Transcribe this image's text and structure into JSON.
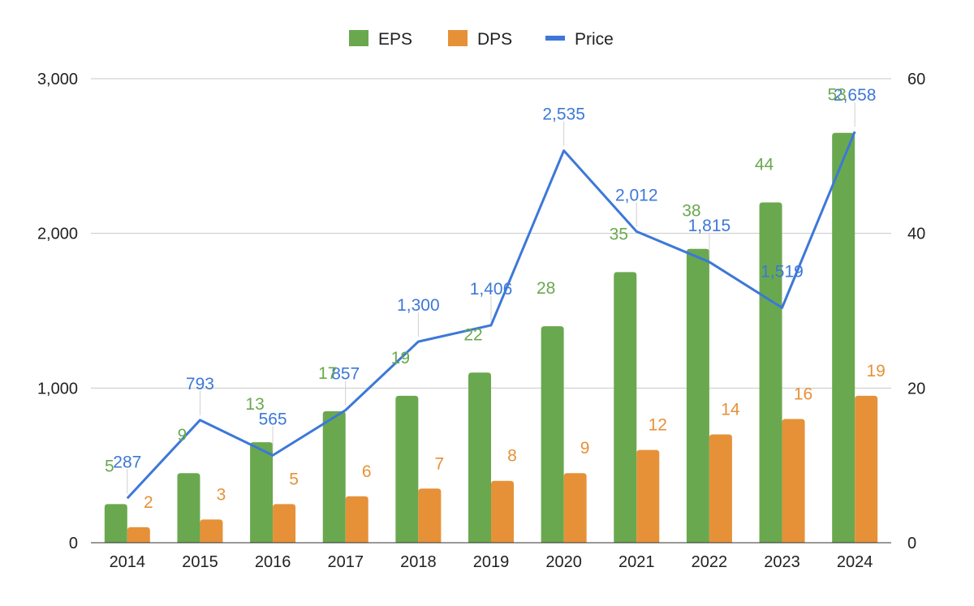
{
  "chart_data": {
    "type": "bar",
    "categories": [
      "2014",
      "2015",
      "2016",
      "2017",
      "2018",
      "2019",
      "2020",
      "2021",
      "2022",
      "2023",
      "2024"
    ],
    "series": [
      {
        "name": "EPS",
        "kind": "bar",
        "axis": "right",
        "color": "#6aa84f",
        "values": [
          5,
          9,
          13,
          17,
          19,
          22,
          28,
          35,
          38,
          44,
          53
        ],
        "labels": [
          "5",
          "9",
          "13",
          "17",
          "19",
          "22",
          "28",
          "35",
          "38",
          "44",
          "53"
        ]
      },
      {
        "name": "DPS",
        "kind": "bar",
        "axis": "right",
        "color": "#e69138",
        "values": [
          2,
          3,
          5,
          6,
          7,
          8,
          9,
          12,
          14,
          16,
          19
        ],
        "labels": [
          "2",
          "3",
          "5",
          "6",
          "7",
          "8",
          "9",
          "12",
          "14",
          "16",
          "19"
        ]
      },
      {
        "name": "Price",
        "kind": "line",
        "axis": "left",
        "color": "#3c78d8",
        "values": [
          287,
          793,
          565,
          857,
          1300,
          1406,
          2535,
          2012,
          1815,
          1519,
          2658
        ],
        "labels": [
          "287",
          "793",
          "565",
          "857",
          "1,300",
          "1,406",
          "2,535",
          "2,012",
          "1,815",
          "1,519",
          "2,658"
        ]
      }
    ],
    "left_axis": {
      "range": [
        0,
        3000
      ],
      "ticks": [
        0,
        1000,
        2000,
        3000
      ],
      "tick_labels": [
        "0",
        "1,000",
        "2,000",
        "3,000"
      ]
    },
    "right_axis": {
      "range": [
        0,
        60
      ],
      "ticks": [
        0,
        20,
        40,
        60
      ],
      "tick_labels": [
        "0",
        "20",
        "40",
        "60"
      ]
    },
    "title": "",
    "xlabel": "",
    "ylabel": "",
    "grid": true,
    "legend_position": "top"
  }
}
